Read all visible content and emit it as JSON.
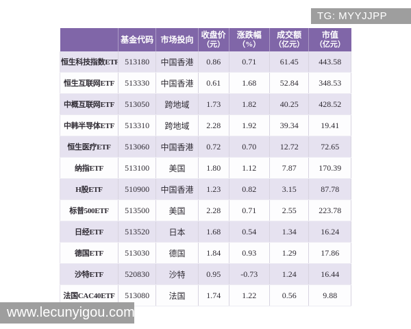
{
  "page": {
    "tg_banner": "TG: MYYJJPP",
    "watermark": "www.lecunyigou.com"
  },
  "colors": {
    "header-bg": "#8066a8",
    "row-alt": "#e6e2f0",
    "row-base": "#fdfdfe",
    "banner-bg": "#9e9e9e",
    "text": "#2f2b33"
  },
  "table": {
    "columns": [
      {
        "label": "",
        "unit": ""
      },
      {
        "label": "基金代码",
        "unit": ""
      },
      {
        "label": "市场投向",
        "unit": ""
      },
      {
        "label": "收盘价",
        "unit": "（元）"
      },
      {
        "label": "涨跌幅",
        "unit": "（%）"
      },
      {
        "label": "成交额",
        "unit": "（亿元）"
      },
      {
        "label": "市值",
        "unit": "（亿元）"
      }
    ],
    "rows": [
      [
        "恒生科技指数ETF",
        "513180",
        "中国香港",
        "0.86",
        "0.71",
        "61.45",
        "443.58"
      ],
      [
        "恒生互联网ETF",
        "513330",
        "中国香港",
        "0.61",
        "1.68",
        "52.84",
        "348.53"
      ],
      [
        "中概互联网ETF",
        "513050",
        "跨地域",
        "1.73",
        "1.82",
        "40.25",
        "428.52"
      ],
      [
        "中韩半导体ETF",
        "513310",
        "跨地域",
        "2.28",
        "1.92",
        "39.34",
        "19.41"
      ],
      [
        "恒生医疗ETF",
        "513060",
        "中国香港",
        "0.72",
        "0.70",
        "12.72",
        "72.65"
      ],
      [
        "纳指ETF",
        "513100",
        "美国",
        "1.80",
        "1.12",
        "7.87",
        "170.39"
      ],
      [
        "H股ETF",
        "510900",
        "中国香港",
        "1.23",
        "0.82",
        "3.15",
        "87.78"
      ],
      [
        "标普500ETF",
        "513500",
        "美国",
        "2.28",
        "0.71",
        "2.55",
        "223.78"
      ],
      [
        "日经ETF",
        "513520",
        "日本",
        "1.68",
        "0.54",
        "1.34",
        "16.24"
      ],
      [
        "德国ETF",
        "513030",
        "德国",
        "1.84",
        "0.93",
        "1.29",
        "17.86"
      ],
      [
        "沙特ETF",
        "520830",
        "沙特",
        "0.95",
        "-0.73",
        "1.24",
        "16.44"
      ],
      [
        "法国CAC40ETF",
        "513080",
        "法国",
        "1.74",
        "1.22",
        "0.56",
        "9.88"
      ]
    ]
  }
}
